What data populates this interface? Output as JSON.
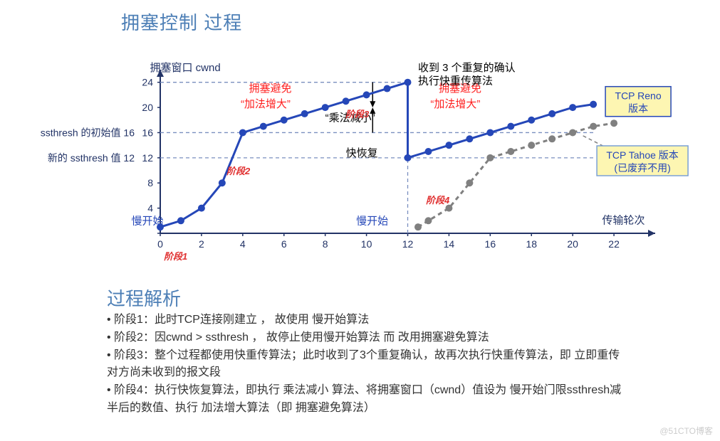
{
  "title": "拥塞控制 过程",
  "section_title": "过程解析",
  "watermark": "@51CTO博客",
  "explain": {
    "l1": "• 阶段1：此时TCP连接刚建立 ， 故使用 慢开始算法",
    "l2": "• 阶段2：因cwnd > ssthresh ， 故停止使用慢开始算法 而 改用拥塞避免算法",
    "l3": "• 阶段3：整个过程都使用快重传算法；此时收到了3个重复确认，故再次执行快重传算法，即 立即重传对方尚未收到的报文段",
    "l4": "• 阶段4：执行快恢复算法，即执行 乘法减小 算法、将拥塞窗口（cwnd）值设为 慢开始门限ssthresh减半后的数值、执行 加法增大算法（即 拥塞避免算法）"
  },
  "phases": {
    "p1": "阶段1",
    "p2": "阶段2",
    "p3": "阶段3",
    "p4": "阶段4"
  },
  "yaxis": {
    "title": "拥塞窗口 cwnd",
    "ticks": [
      0,
      4,
      8,
      12,
      16,
      20,
      24
    ],
    "left_labels": {
      "ssthresh_init": "ssthresh 的初始值 16",
      "ssthresh_new": "新的 ssthresh 值 12"
    }
  },
  "xaxis": {
    "title": "传输轮次",
    "ticks": [
      0,
      2,
      4,
      6,
      8,
      10,
      12,
      14,
      16,
      18,
      20,
      22
    ]
  },
  "chart": {
    "type": "line",
    "xlim": [
      0,
      24
    ],
    "ylim": [
      0,
      26
    ],
    "colors": {
      "axis": "#223366",
      "grid_dash": "#7a8fbf",
      "reno": "#2547b8",
      "tahoe": "#808080",
      "red_text": "#ff1f1f",
      "black_text": "#000000",
      "blue_text": "#2547b8",
      "slowstart_text": "#2547b8",
      "box_bg": "#fdf6b2",
      "box_border": "#2547b8",
      "box_border2": "#7aa0d6",
      "box_text": "#2547b8"
    },
    "line_width": 3,
    "marker_size": 5,
    "reno_points": [
      [
        0,
        1
      ],
      [
        1,
        2
      ],
      [
        2,
        4
      ],
      [
        3,
        8
      ],
      [
        4,
        16
      ],
      [
        5,
        17
      ],
      [
        6,
        18
      ],
      [
        7,
        19
      ],
      [
        8,
        20
      ],
      [
        9,
        21
      ],
      [
        10,
        22
      ],
      [
        11,
        23
      ],
      [
        12,
        24
      ],
      [
        12,
        12
      ],
      [
        13,
        13
      ],
      [
        14,
        14
      ],
      [
        15,
        15
      ],
      [
        16,
        16
      ],
      [
        17,
        17
      ],
      [
        18,
        18
      ],
      [
        19,
        19
      ],
      [
        20,
        20
      ],
      [
        21,
        20.5
      ]
    ],
    "tahoe_points": [
      [
        12.5,
        1
      ],
      [
        13,
        2
      ],
      [
        14,
        4
      ],
      [
        15,
        8
      ],
      [
        16,
        12
      ],
      [
        17,
        13
      ],
      [
        18,
        14
      ],
      [
        19,
        15
      ],
      [
        20,
        16
      ],
      [
        21,
        17
      ],
      [
        22,
        17.5
      ]
    ],
    "dash_hlines": [
      12,
      16,
      24
    ],
    "dash_vline": 12,
    "annotations": {
      "ylabel_title": "拥塞窗口 cwnd",
      "avoid1_a": "拥塞避免",
      "avoid1_b": "“加法增大”",
      "avoid2_a": "拥塞避免",
      "avoid2_b": "“加法增大”",
      "mult": "“乘法减小”",
      "recover": "快恢复",
      "slow1": "慢开始",
      "slow2": "慢开始",
      "dup_ack_a": "收到 3 个重复的确认",
      "dup_ack_b": "执行快重传算法",
      "reno_box_a": "TCP Reno",
      "reno_box_b": "版本",
      "tahoe_box_a": "TCP Tahoe 版本",
      "tahoe_box_b": "(已废弃不用)"
    }
  }
}
